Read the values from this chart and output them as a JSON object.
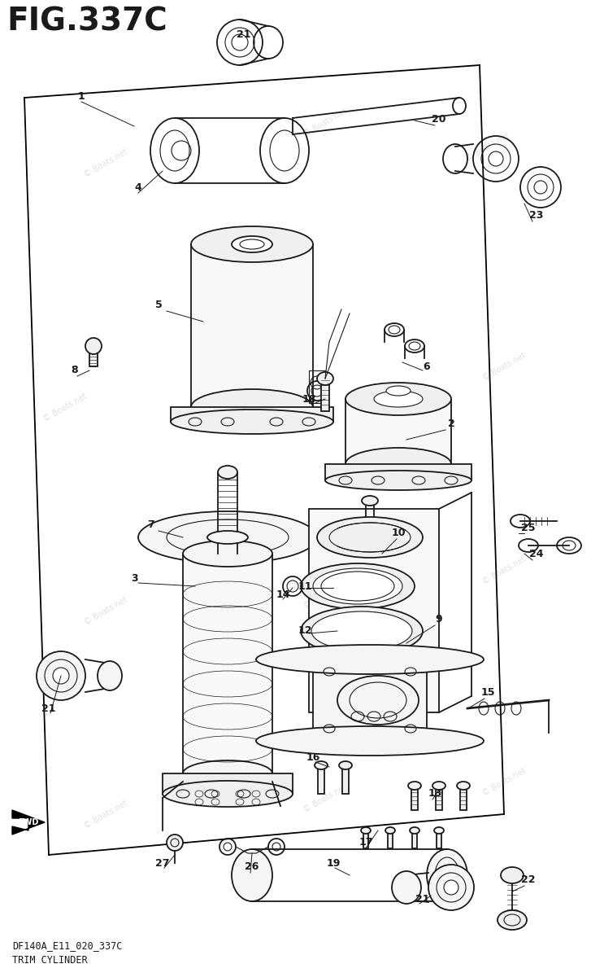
{
  "title": "FIG.337C",
  "subtitle1": "DF140A_E11_020_337C",
  "subtitle2": "TRIM CYLINDER",
  "bg_color": "#ffffff",
  "line_color": "#1a1a1a",
  "fig_width": 7.27,
  "fig_height": 12.0,
  "dpi": 100
}
